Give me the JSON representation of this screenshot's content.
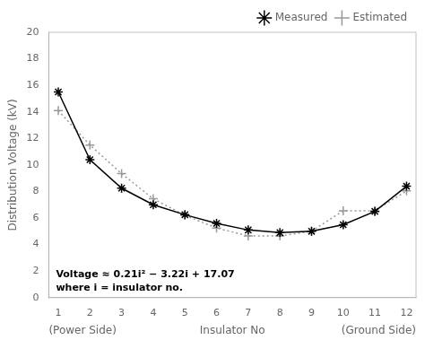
{
  "chart_data": {
    "type": "line",
    "x": [
      1,
      2,
      3,
      4,
      5,
      6,
      7,
      8,
      9,
      10,
      11,
      12
    ],
    "series": [
      {
        "name": "Measured",
        "color": "#000000",
        "marker": "star",
        "line_style": "solid",
        "values": [
          15.5,
          10.4,
          8.25,
          7.0,
          6.25,
          5.6,
          5.1,
          4.9,
          5.0,
          5.5,
          6.5,
          8.4
        ]
      },
      {
        "name": "Estimated",
        "color": "#999999",
        "marker": "cross",
        "line_style": "dotted",
        "values": [
          14.1,
          11.5,
          9.35,
          7.45,
          6.2,
          5.25,
          4.65,
          4.65,
          5.0,
          6.55,
          6.55,
          8.05
        ]
      }
    ],
    "xlim": [
      0.7,
      12.3
    ],
    "xticks": [
      1,
      2,
      3,
      4,
      5,
      6,
      7,
      8,
      9,
      10,
      11,
      12
    ],
    "ylim": [
      0,
      20
    ],
    "yticks": [
      0,
      2,
      4,
      6,
      8,
      10,
      12,
      14,
      16,
      18,
      20
    ],
    "xlabel": [
      "(Power Side)",
      "Insulator No",
      "(Ground Side)"
    ],
    "ylabel": "Distribution Voltage (kV)",
    "annotations": [
      "Voltage ≈ 0.21i² − 3.22i + 17.07",
      "where i = insulator no."
    ],
    "legend": "upper right",
    "grid": false
  }
}
